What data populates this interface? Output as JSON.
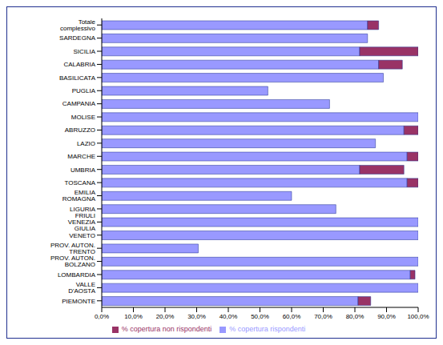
{
  "chart_data": {
    "type": "bar",
    "orientation": "horizontal",
    "stacked": true,
    "legend": "bottom",
    "grid": false,
    "categories": [
      "Totale complessivo",
      "SARDEGNA",
      "SICILIA",
      "CALABRIA",
      "BASILICATA",
      "PUGLIA",
      "CAMPANIA",
      "MOLISE",
      "ABRUZZO",
      "LAZIO",
      "MARCHE",
      "UMBRIA",
      "TOSCANA",
      "EMILIA ROMAGNA",
      "LIGURIA",
      "FRIULI VENEZIA GIULIA",
      "VENETO",
      "PROV. AUTON. TRENTO",
      "PROV. AUTON. BOLZANO",
      "LOMBARDIA",
      "VALLE D'AOSTA",
      "PIEMONTE"
    ],
    "series": [
      {
        "name": "% copertura rispondenti",
        "color": "#9999ff",
        "values": [
          84,
          84,
          81.5,
          87.5,
          89,
          52.5,
          72,
          100,
          95.5,
          86.5,
          96.5,
          81.5,
          96.5,
          60,
          74,
          100,
          100,
          30.5,
          100,
          97.5,
          100,
          81
        ]
      },
      {
        "name": "% copertura non rispondenti",
        "color": "#993366",
        "values": [
          3.5,
          0,
          18.5,
          7.5,
          0,
          0,
          0,
          0,
          4.5,
          0,
          3.5,
          14,
          3.5,
          0,
          0,
          0,
          0,
          0,
          0,
          1.5,
          0,
          4
        ]
      }
    ],
    "xlim": [
      0,
      100
    ],
    "xticks": [
      {
        "value": 0,
        "label": "0,0%"
      },
      {
        "value": 10,
        "label": "10,0%"
      },
      {
        "value": 20,
        "label": "20,0%"
      },
      {
        "value": 30,
        "label": "30,0%"
      },
      {
        "value": 40,
        "label": "40,0%"
      },
      {
        "value": 50,
        "label": "50,0%"
      },
      {
        "value": 60,
        "label": "60,0%"
      },
      {
        "value": 70,
        "label": "70,0%"
      },
      {
        "value": 80,
        "label": "80,0%"
      },
      {
        "value": 90,
        "label": "90,0%"
      },
      {
        "value": 100,
        "label": "100,0%"
      }
    ]
  }
}
